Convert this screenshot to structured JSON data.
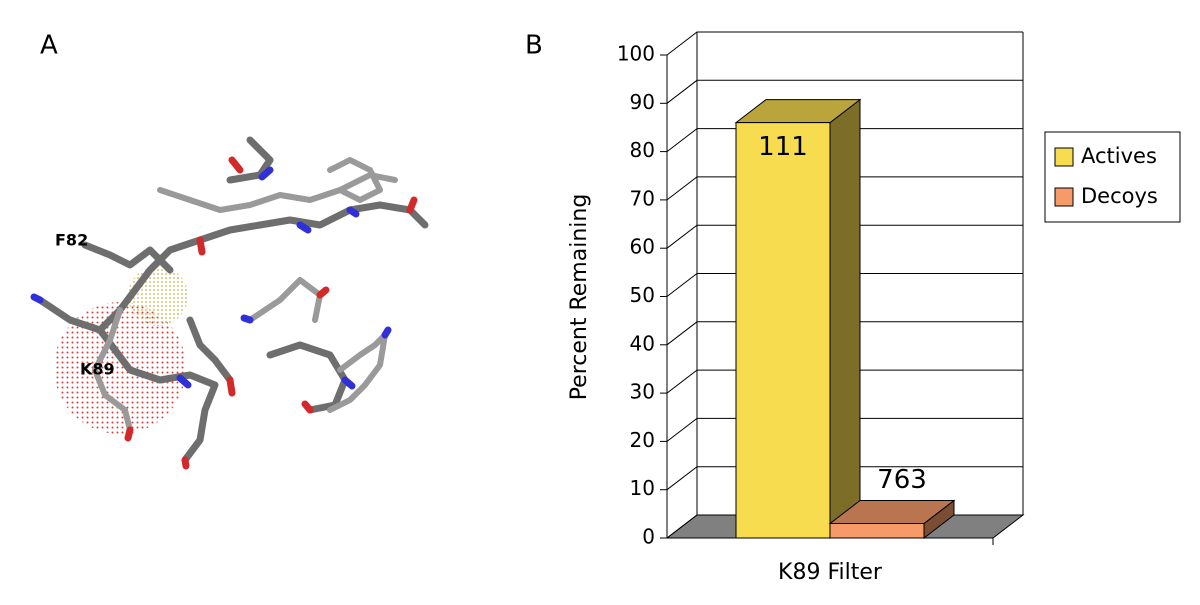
{
  "panel_a": {
    "label": "A",
    "residues": [
      "F82",
      "K89"
    ]
  },
  "chart_data": {
    "type": "bar3d",
    "panel_label": "B",
    "ylabel": "Percent Remaining",
    "categories": [
      "K89 Filter"
    ],
    "series": [
      {
        "name": "Actives",
        "color": "#f8dc50",
        "values": [
          86
        ],
        "count_label": "111"
      },
      {
        "name": "Decoys",
        "color": "#f79a6a",
        "values": [
          3
        ],
        "count_label": "763"
      }
    ],
    "ylim": [
      0,
      100
    ],
    "yticks": [
      0,
      10,
      20,
      30,
      40,
      50,
      60,
      70,
      80,
      90,
      100
    ],
    "grid": true,
    "legend": "right"
  }
}
